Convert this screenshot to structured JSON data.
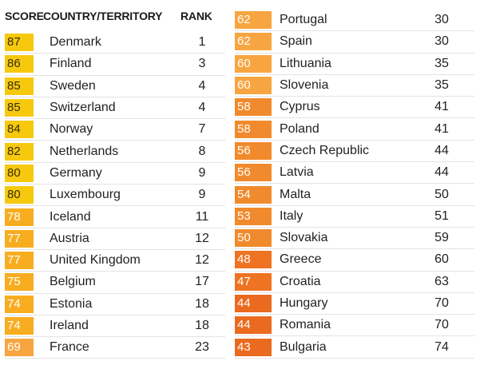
{
  "headers": {
    "score": "SCORE",
    "country": "COUNTRY/TERRITORY",
    "rank": "RANK"
  },
  "colors": {
    "yellow": "#f6c90e",
    "amber": "#f8ad20",
    "orange_light": "#f7a540",
    "orange": "#f18a2c",
    "orange_dark": "#ee7322",
    "red_orange": "#ea6a1f",
    "score_text_dark": "#3a2d00",
    "score_text_light": "#ffffff"
  },
  "left_rows": [
    {
      "score": "87",
      "country": "Denmark",
      "rank": "1",
      "tone": "yellow"
    },
    {
      "score": "86",
      "country": "Finland",
      "rank": "3",
      "tone": "yellow"
    },
    {
      "score": "85",
      "country": "Sweden",
      "rank": "4",
      "tone": "yellow"
    },
    {
      "score": "85",
      "country": "Switzerland",
      "rank": "4",
      "tone": "yellow"
    },
    {
      "score": "84",
      "country": "Norway",
      "rank": "7",
      "tone": "yellow"
    },
    {
      "score": "82",
      "country": "Netherlands",
      "rank": "8",
      "tone": "yellow"
    },
    {
      "score": "80",
      "country": "Germany",
      "rank": "9",
      "tone": "yellow"
    },
    {
      "score": "80",
      "country": "Luxembourg",
      "rank": "9",
      "tone": "yellow"
    },
    {
      "score": "78",
      "country": "Iceland",
      "rank": "11",
      "tone": "amber"
    },
    {
      "score": "77",
      "country": "Austria",
      "rank": "12",
      "tone": "amber"
    },
    {
      "score": "77",
      "country": "United Kingdom",
      "rank": "12",
      "tone": "amber"
    },
    {
      "score": "75",
      "country": "Belgium",
      "rank": "17",
      "tone": "amber"
    },
    {
      "score": "74",
      "country": "Estonia",
      "rank": "18",
      "tone": "amber"
    },
    {
      "score": "74",
      "country": "Ireland",
      "rank": "18",
      "tone": "amber"
    },
    {
      "score": "69",
      "country": "France",
      "rank": "23",
      "tone": "orange_light"
    }
  ],
  "right_rows": [
    {
      "score": "62",
      "country": "Portugal",
      "rank": "30",
      "tone": "orange_light"
    },
    {
      "score": "62",
      "country": "Spain",
      "rank": "30",
      "tone": "orange_light"
    },
    {
      "score": "60",
      "country": "Lithuania",
      "rank": "35",
      "tone": "orange_light"
    },
    {
      "score": "60",
      "country": "Slovenia",
      "rank": "35",
      "tone": "orange_light"
    },
    {
      "score": "58",
      "country": "Cyprus",
      "rank": "41",
      "tone": "orange"
    },
    {
      "score": "58",
      "country": "Poland",
      "rank": "41",
      "tone": "orange"
    },
    {
      "score": "56",
      "country": "Czech Republic",
      "rank": "44",
      "tone": "orange"
    },
    {
      "score": "56",
      "country": "Latvia",
      "rank": "44",
      "tone": "orange"
    },
    {
      "score": "54",
      "country": "Malta",
      "rank": "50",
      "tone": "orange"
    },
    {
      "score": "53",
      "country": "Italy",
      "rank": "51",
      "tone": "orange"
    },
    {
      "score": "50",
      "country": "Slovakia",
      "rank": "59",
      "tone": "orange"
    },
    {
      "score": "48",
      "country": "Greece",
      "rank": "60",
      "tone": "orange_dark"
    },
    {
      "score": "47",
      "country": "Croatia",
      "rank": "63",
      "tone": "orange_dark"
    },
    {
      "score": "44",
      "country": "Hungary",
      "rank": "70",
      "tone": "red_orange"
    },
    {
      "score": "44",
      "country": "Romania",
      "rank": "70",
      "tone": "red_orange"
    },
    {
      "score": "43",
      "country": "Bulgaria",
      "rank": "74",
      "tone": "red_orange"
    }
  ]
}
